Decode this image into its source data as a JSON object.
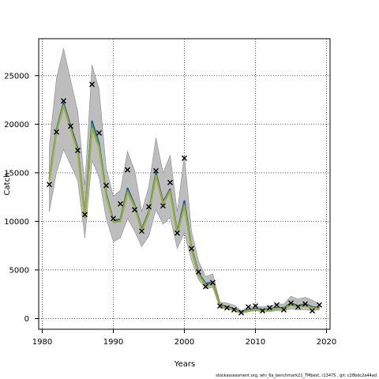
{
  "chart_data": {
    "type": "line",
    "title": "",
    "xlabel": "Years",
    "ylabel": "Catch",
    "xlim": [
      1979.5,
      2020.5
    ],
    "ylim": [
      -1100,
      28800
    ],
    "xticks": [
      1980,
      1990,
      2000,
      2010,
      2020
    ],
    "yticks": [
      0,
      5000,
      10000,
      15000,
      20000,
      25000
    ],
    "grid": true,
    "grid_style": "dotted",
    "years": [
      1981,
      1982,
      1983,
      1984,
      1985,
      1986,
      1987,
      1988,
      1989,
      1990,
      1991,
      1992,
      1993,
      1994,
      1995,
      1996,
      1997,
      1998,
      1999,
      2000,
      2001,
      2002,
      2003,
      2004,
      2005,
      2006,
      2007,
      2008,
      2009,
      2010,
      2011,
      2012,
      2013,
      2014,
      2015,
      2016,
      2017,
      2018,
      2019
    ],
    "band_lower": [
      11000,
      15000,
      17400,
      15800,
      14200,
      8300,
      16300,
      14500,
      10300,
      7900,
      8300,
      10300,
      9000,
      7400,
      8500,
      11200,
      9700,
      10400,
      7200,
      8800,
      6000,
      4000,
      3100,
      3200,
      1100,
      1000,
      800,
      500,
      700,
      800,
      700,
      700,
      800,
      800,
      1000,
      900,
      900,
      800,
      900
    ],
    "band_upper": [
      17800,
      24700,
      27800,
      24500,
      21300,
      13700,
      26100,
      23600,
      15500,
      12600,
      13200,
      17200,
      15200,
      11000,
      13600,
      18600,
      15000,
      16800,
      11000,
      16800,
      9000,
      5900,
      4300,
      4600,
      1700,
      1600,
      1400,
      800,
      1200,
      1300,
      1200,
      1300,
      1500,
      1500,
      2300,
      2000,
      2200,
      1900,
      1500
    ],
    "series": [
      {
        "name": "",
        "color": "#2b3d8f",
        "values": [
          14400,
          19400,
          22200,
          19800,
          17500,
          10600,
          20300,
          18000,
          12900,
          10100,
          10200,
          13400,
          11700,
          9200,
          11000,
          15000,
          12000,
          13300,
          8900,
          12100,
          7300,
          4700,
          3600,
          3700,
          1400,
          1200,
          1000,
          700,
          900,
          1000,
          900,
          1000,
          1100,
          1100,
          1600,
          1300,
          1500,
          1200,
          1100
        ]
      },
      {
        "name": "",
        "color": "#2a9d8f",
        "values": [
          14300,
          19300,
          22000,
          19600,
          17300,
          10500,
          20000,
          17800,
          12800,
          10000,
          10100,
          13200,
          11600,
          9100,
          10900,
          14800,
          11900,
          13200,
          8800,
          11800,
          7200,
          4600,
          3500,
          3600,
          1300,
          1100,
          950,
          650,
          850,
          950,
          850,
          950,
          1050,
          1050,
          1500,
          1250,
          1400,
          1150,
          1050
        ]
      },
      {
        "name": "",
        "color": "#9aad3a",
        "values": [
          14200,
          19200,
          21900,
          19500,
          17200,
          10400,
          19600,
          17600,
          12700,
          9900,
          10000,
          13000,
          11500,
          9000,
          10800,
          14700,
          11800,
          13100,
          8700,
          11600,
          7100,
          4500,
          3400,
          3500,
          1300,
          1100,
          900,
          600,
          800,
          900,
          800,
          900,
          1000,
          1000,
          1400,
          1200,
          1300,
          1100,
          1000
        ]
      }
    ],
    "observed": {
      "marker": "x",
      "years": [
        1981,
        1982,
        1983,
        1984,
        1985,
        1986,
        1987,
        1988,
        1989,
        1990,
        1991,
        1992,
        1993,
        1994,
        1995,
        1996,
        1997,
        1998,
        1999,
        2000,
        2001,
        2002,
        2003,
        2004,
        2005,
        2006,
        2007,
        2008,
        2009,
        2010,
        2011,
        2012,
        2013,
        2014,
        2015,
        2016,
        2017,
        2018,
        2019
      ],
      "values": [
        13800,
        19200,
        22400,
        19800,
        17300,
        10700,
        24100,
        19100,
        13700,
        10300,
        11800,
        15300,
        11200,
        9000,
        11500,
        15200,
        11600,
        14000,
        8800,
        16500,
        7200,
        4800,
        3300,
        3700,
        1300,
        1100,
        900,
        600,
        1200,
        1300,
        800,
        1100,
        1400,
        900,
        1600,
        1200,
        1500,
        800,
        1400
      ]
    },
    "colors": {
      "band": "#bdbdbd",
      "band_edge": "#8c8c8c",
      "marker": "#000000"
    }
  },
  "footer": "stockassessment.org, whi_6a_benchmark21_TMbest, r13475 , git: c28bdc2a44ad"
}
